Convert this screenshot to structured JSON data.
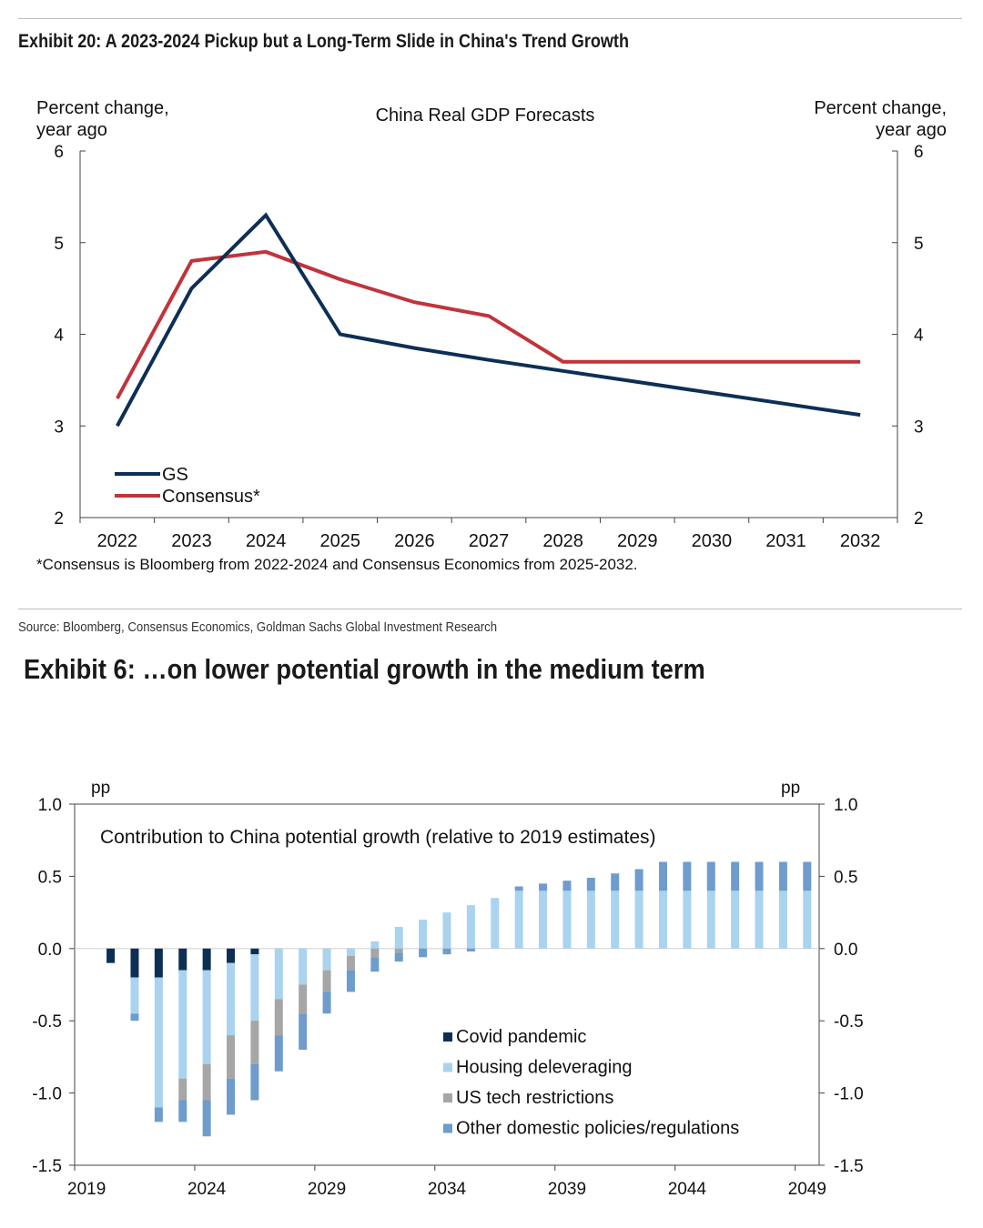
{
  "exhibit20": {
    "title": "Exhibit 20: A 2023-2024 Pickup but a Long-Term Slide in China's Trend Growth",
    "footnote": "*Consensus is Bloomberg from 2022-2024 and Consensus Economics from 2025-2032.",
    "source": "Source: Bloomberg, Consensus Economics, Goldman Sachs Global Investment Research"
  },
  "exhibit6": {
    "title": "Exhibit 6: …on lower potential growth in the medium term"
  },
  "chart_data": [
    {
      "type": "line",
      "title": "China Real GDP Forecasts",
      "ylabel_left": [
        "Percent change,",
        "year ago"
      ],
      "ylabel_right": [
        "Percent change,",
        "year ago"
      ],
      "categories": [
        "2022",
        "2023",
        "2024",
        "2025",
        "2026",
        "2027",
        "2028",
        "2029",
        "2030",
        "2031",
        "2032"
      ],
      "ylim": [
        2,
        6
      ],
      "yticks": [
        2,
        3,
        4,
        5,
        6
      ],
      "legend_position": "bottom-left",
      "series": [
        {
          "name": "GS",
          "color": "#0d2f55",
          "values": [
            3.0,
            4.5,
            5.3,
            4.0,
            3.85,
            3.72,
            3.6,
            3.48,
            3.36,
            3.24,
            3.12
          ]
        },
        {
          "name": "Consensus*",
          "color": "#c0343b",
          "values": [
            3.3,
            4.8,
            4.9,
            4.6,
            4.35,
            4.2,
            3.7,
            3.7,
            3.7,
            3.7,
            3.7
          ]
        }
      ]
    },
    {
      "type": "bar",
      "stacked": true,
      "title": "Contribution to China potential growth (relative to 2019 estimates)",
      "unit_left": "pp",
      "unit_right": "pp",
      "x_start": 2019,
      "x_end": 2050,
      "xticks": [
        "2019",
        "2024",
        "2029",
        "2034",
        "2039",
        "2044",
        "2049"
      ],
      "ylim": [
        -1.5,
        1.0
      ],
      "yticks": [
        "1.0",
        "0.5",
        "0.0",
        "-0.5",
        "-1.0",
        "-1.5"
      ],
      "legend_position": "bottom-right",
      "series": [
        {
          "name": "Covid pandemic",
          "color": "#0d2f55",
          "values": [
            0,
            -0.1,
            -0.2,
            -0.2,
            -0.15,
            -0.15,
            -0.1,
            -0.04,
            0,
            0,
            0,
            0,
            0,
            0,
            0,
            0,
            0,
            0,
            0,
            0,
            0,
            0,
            0,
            0,
            0,
            0,
            0,
            0,
            0,
            0,
            0
          ]
        },
        {
          "name": "Housing deleveraging",
          "color": "#a9d3ef",
          "values": [
            0,
            0,
            -0.25,
            -0.9,
            -0.75,
            -0.65,
            -0.5,
            -0.46,
            -0.35,
            -0.25,
            -0.15,
            -0.05,
            0.05,
            0.15,
            0.2,
            0.25,
            0.3,
            0.35,
            0.4,
            0.4,
            0.4,
            0.4,
            0.4,
            0.4,
            0.4,
            0.4,
            0.4,
            0.4,
            0.4,
            0.4,
            0.4
          ]
        },
        {
          "name": "US tech restrictions",
          "color": "#a6a6a6",
          "values": [
            0,
            0,
            0,
            0,
            -0.15,
            -0.25,
            -0.3,
            -0.3,
            -0.25,
            -0.2,
            -0.15,
            -0.1,
            -0.06,
            -0.03,
            0,
            0,
            0,
            0,
            0,
            0,
            0,
            0,
            0,
            0,
            0,
            0,
            0,
            0,
            0,
            0,
            0
          ]
        },
        {
          "name": "Other domestic policies/regulations",
          "color": "#6e9ccd",
          "values": [
            0,
            0,
            -0.05,
            -0.1,
            -0.15,
            -0.25,
            -0.25,
            -0.25,
            -0.25,
            -0.25,
            -0.15,
            -0.15,
            -0.1,
            -0.06,
            -0.06,
            -0.04,
            -0.02,
            0,
            0.03,
            0.05,
            0.07,
            0.09,
            0.12,
            0.15,
            0.2,
            0.2,
            0.2,
            0.2,
            0.2,
            0.2,
            0.2
          ]
        }
      ]
    }
  ]
}
